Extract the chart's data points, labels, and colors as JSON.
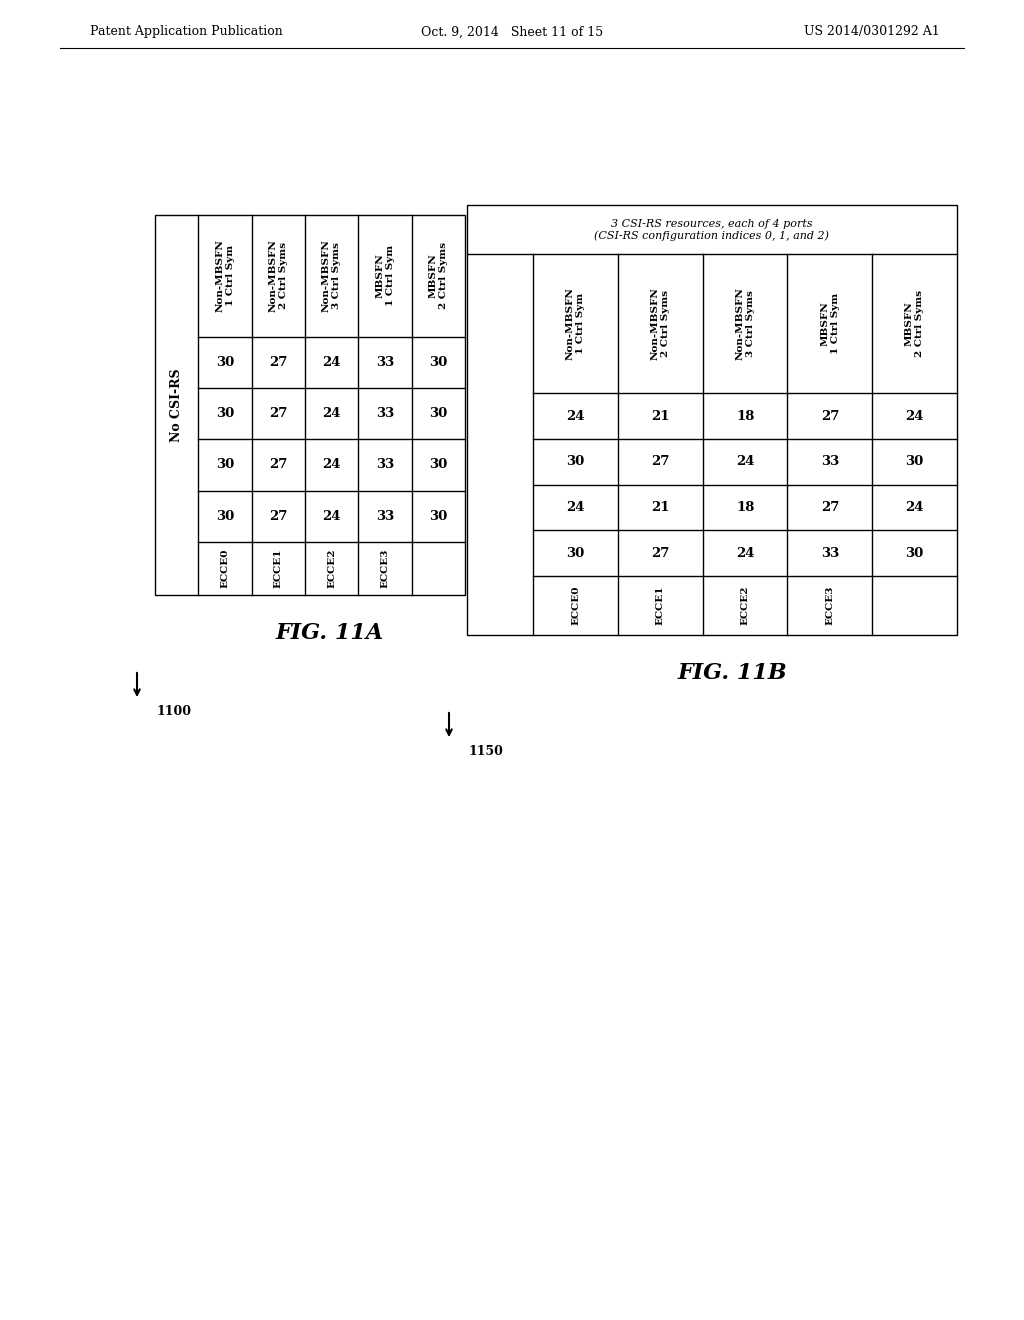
{
  "header_text_left": "Patent Application Publication",
  "header_text_mid": "Oct. 9, 2014   Sheet 11 of 15",
  "header_text_right": "US 2014/0301292 A1",
  "table1_title": "No CSI-RS",
  "table1_col_headers": [
    "Non-MBSFN\n1 Ctrl Sym",
    "Non-MBSFN\n2 Ctrl Syms",
    "Non-MBSFN\n3 Ctrl Syms",
    "MBSFN\n1 Ctrl Sym",
    "MBSFN\n2 Ctrl Syms"
  ],
  "table1_row_headers": [
    "ECCE0",
    "ECCE1",
    "ECCE2",
    "ECCE3"
  ],
  "table1_data": [
    [
      30,
      27,
      24,
      33,
      30
    ],
    [
      30,
      27,
      24,
      33,
      30
    ],
    [
      30,
      27,
      24,
      33,
      30
    ],
    [
      30,
      27,
      24,
      33,
      30
    ]
  ],
  "fig1_label": "FIG. 11A",
  "fig1_number": "1100",
  "table2_title_line1": "3 CSI-RS resources, each of 4 ports",
  "table2_title_line2": "(CSI-RS configuration indices 0, 1, and 2)",
  "table2_col_headers": [
    "Non-MBSFN\n1 Ctrl Sym",
    "Non-MBSFN\n2 Ctrl Syms",
    "Non-MBSFN\n3 Ctrl Syms",
    "MBSFN\n1 Ctrl Sym",
    "MBSFN\n2 Ctrl Syms"
  ],
  "table2_row_headers": [
    "ECCE0",
    "ECCE1",
    "ECCE2",
    "ECCE3"
  ],
  "table2_data": [
    [
      24,
      21,
      18,
      27,
      24
    ],
    [
      30,
      27,
      24,
      33,
      30
    ],
    [
      24,
      21,
      18,
      27,
      24
    ],
    [
      30,
      27,
      24,
      33,
      30
    ]
  ],
  "fig2_label": "FIG. 11B",
  "fig2_number": "1150",
  "bg_color": "#ffffff",
  "border_color": "#000000",
  "text_color": "#000000"
}
